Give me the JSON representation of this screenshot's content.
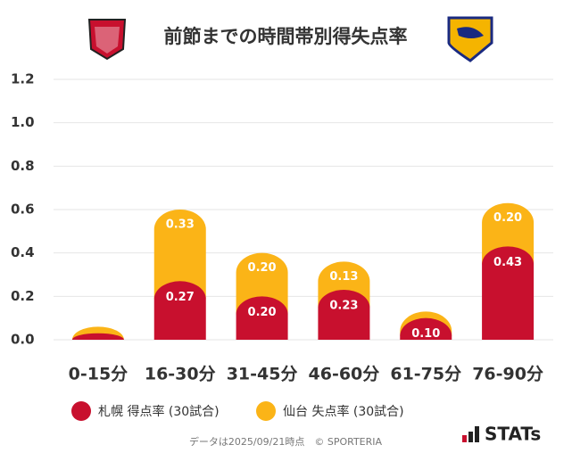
{
  "chart_data": {
    "type": "stacked-bar",
    "title": "前節までの時間帯別得失点率",
    "categories": [
      "0-15分",
      "16-30分",
      "31-45分",
      "46-60分",
      "61-75分",
      "76-90分"
    ],
    "series": [
      {
        "name": "札幌 得点率 (30試合)",
        "color": "#c8102e",
        "values": [
          0.03,
          0.27,
          0.2,
          0.23,
          0.1,
          0.43
        ],
        "value_labels": [
          null,
          "0.27",
          "0.20",
          "0.23",
          "0.10",
          "0.43"
        ]
      },
      {
        "name": "仙台 失点率 (30試合)",
        "color": "#fbb417",
        "values": [
          0.03,
          0.33,
          0.2,
          0.13,
          0.03,
          0.2
        ],
        "value_labels": [
          null,
          "0.33",
          "0.20",
          "0.13",
          null,
          "0.20"
        ]
      }
    ],
    "ylim": [
      0,
      1.2
    ],
    "yticks": [
      {
        "value": 0,
        "label": "0.0"
      },
      0.2,
      0.4,
      0.6,
      0.8,
      {
        "value": 1,
        "label": "1.0"
      },
      1.2
    ],
    "grid": true,
    "footnote": "データは2025/09/21時点　© SPORTERIA",
    "brand": "STATs"
  }
}
